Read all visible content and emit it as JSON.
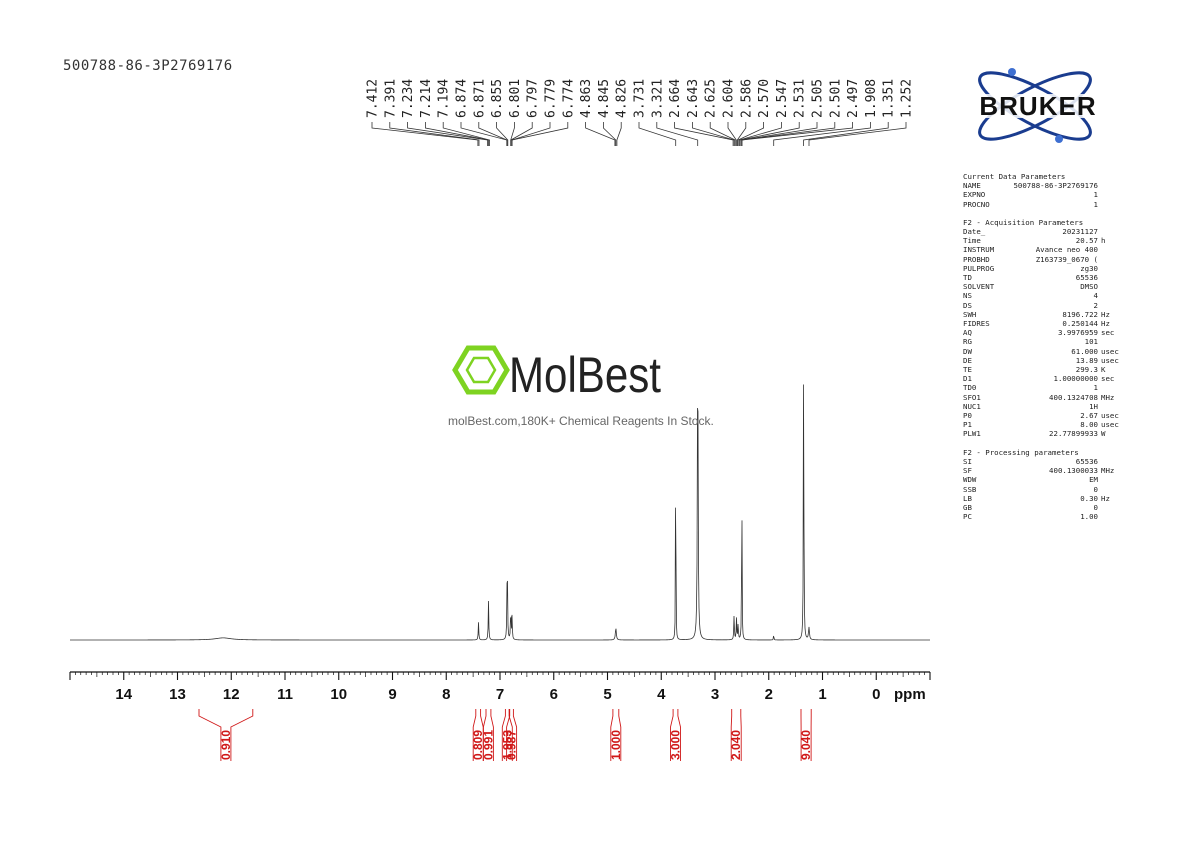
{
  "sample_id": "500788-86-3P2769176",
  "brand": {
    "logo_text": "BRUKER"
  },
  "watermark": {
    "logo_text": "MolBest",
    "tagline": "molBest.com,180K+ Chemical Reagents In Stock."
  },
  "colors": {
    "spectrum": "#333333",
    "integral": "#d01818",
    "logo_blue": "#1a3c8f"
  },
  "parameters": {
    "current": {
      "title": "Current Data Parameters",
      "rows": [
        {
          "key": "NAME",
          "value": "500788-86-3P2769176",
          "unit": ""
        },
        {
          "key": "EXPNO",
          "value": "1",
          "unit": ""
        },
        {
          "key": "PROCNO",
          "value": "1",
          "unit": ""
        }
      ]
    },
    "acquisition": {
      "title": "F2 - Acquisition Parameters",
      "rows": [
        {
          "key": "Date_",
          "value": "20231127",
          "unit": ""
        },
        {
          "key": "Time",
          "value": "20.57",
          "unit": "h"
        },
        {
          "key": "INSTRUM",
          "value": "Avance neo 400",
          "unit": ""
        },
        {
          "key": "PROBHD",
          "value": "Z163739_0670 (",
          "unit": ""
        },
        {
          "key": "PULPROG",
          "value": "zg30",
          "unit": ""
        },
        {
          "key": "TD",
          "value": "65536",
          "unit": ""
        },
        {
          "key": "SOLVENT",
          "value": "DMSO",
          "unit": ""
        },
        {
          "key": "NS",
          "value": "4",
          "unit": ""
        },
        {
          "key": "DS",
          "value": "2",
          "unit": ""
        },
        {
          "key": "SWH",
          "value": "8196.722",
          "unit": "Hz"
        },
        {
          "key": "FIDRES",
          "value": "0.250144",
          "unit": "Hz"
        },
        {
          "key": "AQ",
          "value": "3.9976959",
          "unit": "sec"
        },
        {
          "key": "RG",
          "value": "101",
          "unit": ""
        },
        {
          "key": "DW",
          "value": "61.000",
          "unit": "usec"
        },
        {
          "key": "DE",
          "value": "13.89",
          "unit": "usec"
        },
        {
          "key": "TE",
          "value": "299.3",
          "unit": "K"
        },
        {
          "key": "D1",
          "value": "1.00000000",
          "unit": "sec"
        },
        {
          "key": "TD0",
          "value": "1",
          "unit": ""
        },
        {
          "key": "SFO1",
          "value": "400.1324708",
          "unit": "MHz"
        },
        {
          "key": "NUC1",
          "value": "1H",
          "unit": ""
        },
        {
          "key": "P0",
          "value": "2.67",
          "unit": "usec"
        },
        {
          "key": "P1",
          "value": "8.00",
          "unit": "usec"
        },
        {
          "key": "PLW1",
          "value": "22.77899933",
          "unit": "W"
        }
      ]
    },
    "processing": {
      "title": "F2 - Processing parameters",
      "rows": [
        {
          "key": "SI",
          "value": "65536",
          "unit": ""
        },
        {
          "key": "SF",
          "value": "400.1300033",
          "unit": "MHz"
        },
        {
          "key": "WDW",
          "value": "EM",
          "unit": ""
        },
        {
          "key": "SSB",
          "value": "0",
          "unit": ""
        },
        {
          "key": "LB",
          "value": "0.30",
          "unit": "Hz"
        },
        {
          "key": "GB",
          "value": "0",
          "unit": ""
        },
        {
          "key": "PC",
          "value": "1.00",
          "unit": ""
        }
      ]
    }
  },
  "chart_data": {
    "type": "line",
    "xlabel": "ppm",
    "xlim": [
      15,
      -1
    ],
    "x_reversed": true,
    "xticks": [
      14,
      13,
      12,
      11,
      10,
      9,
      8,
      7,
      6,
      5,
      4,
      3,
      2,
      1,
      0
    ],
    "peak_labels": [
      "7.412",
      "7.391",
      "7.234",
      "7.214",
      "7.194",
      "6.874",
      "6.871",
      "6.855",
      "6.801",
      "6.797",
      "6.779",
      "6.774",
      "4.863",
      "4.845",
      "4.826",
      "3.731",
      "3.321",
      "2.664",
      "2.643",
      "2.625",
      "2.604",
      "2.586",
      "2.570",
      "2.547",
      "2.531",
      "2.505",
      "2.501",
      "2.497",
      "1.908",
      "1.351",
      "1.252"
    ],
    "peaks": [
      {
        "ppm": 12.15,
        "height": 0.006,
        "width": 0.18
      },
      {
        "ppm": 7.4,
        "height": 0.05,
        "width": 0.006
      },
      {
        "ppm": 7.214,
        "height": 0.11,
        "width": 0.006
      },
      {
        "ppm": 6.865,
        "height": 0.26,
        "width": 0.006
      },
      {
        "ppm": 6.8,
        "height": 0.09,
        "width": 0.006
      },
      {
        "ppm": 6.776,
        "height": 0.065,
        "width": 0.006
      },
      {
        "ppm": 4.845,
        "height": 0.035,
        "width": 0.01
      },
      {
        "ppm": 3.731,
        "height": 1.0,
        "width": 0.003
      },
      {
        "ppm": 3.321,
        "height": 0.87,
        "width": 0.008
      },
      {
        "ppm": 2.645,
        "height": 0.07,
        "width": 0.006
      },
      {
        "ppm": 2.6,
        "height": 0.06,
        "width": 0.006
      },
      {
        "ppm": 2.57,
        "height": 0.045,
        "width": 0.006
      },
      {
        "ppm": 2.501,
        "height": 0.57,
        "width": 0.004
      },
      {
        "ppm": 1.908,
        "height": 0.02,
        "width": 0.004
      },
      {
        "ppm": 1.351,
        "height": 0.9,
        "width": 0.005
      },
      {
        "ppm": 1.252,
        "height": 0.035,
        "width": 0.01
      }
    ],
    "integrals": [
      {
        "range": [
          12.6,
          11.6
        ],
        "label": "0.910"
      },
      {
        "range": [
          7.45,
          7.36
        ],
        "label": "0.809"
      },
      {
        "range": [
          7.26,
          7.17
        ],
        "label": "0.991"
      },
      {
        "range": [
          6.9,
          6.83
        ],
        "label": "1.953"
      },
      {
        "range": [
          6.82,
          6.75
        ],
        "label": "0.987"
      },
      {
        "range": [
          4.9,
          4.79
        ],
        "label": "1.000"
      },
      {
        "range": [
          3.78,
          3.69
        ],
        "label": "3.000"
      },
      {
        "range": [
          2.69,
          2.52
        ],
        "label": "2.040"
      },
      {
        "range": [
          1.4,
          1.21
        ],
        "label": "9.040"
      }
    ]
  }
}
